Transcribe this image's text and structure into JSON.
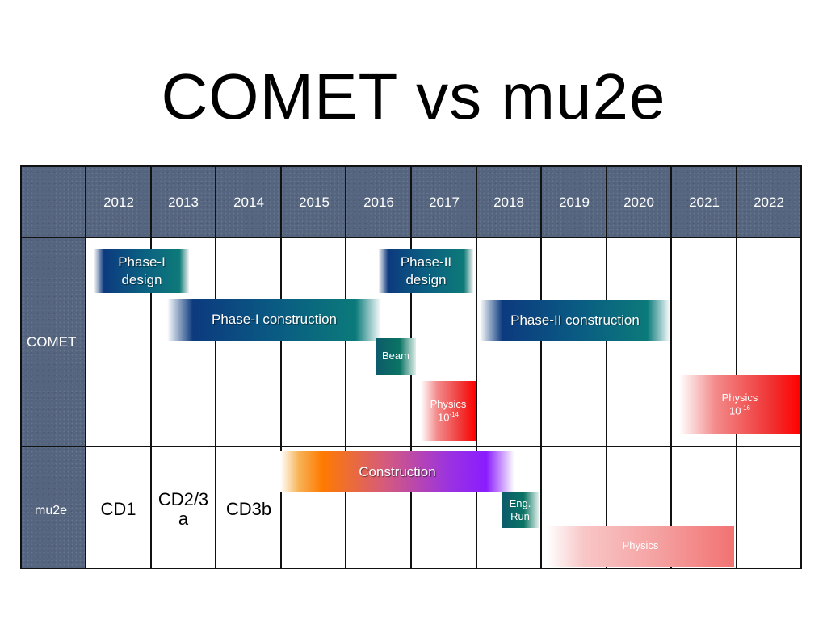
{
  "title": "COMET vs mu2e",
  "years": [
    "2012",
    "2013",
    "2014",
    "2015",
    "2016",
    "2017",
    "2018",
    "2019",
    "2020",
    "2021",
    "2022"
  ],
  "rows": {
    "comet": "COMET",
    "mu2e": "mu2e"
  },
  "comet_bars": {
    "phase1_design": "Phase-I\ndesign",
    "phase2_design": "Phase-II\ndesign",
    "phase1_construction": "Phase-I construction",
    "phase2_construction": "Phase-II construction",
    "beam": "Beam",
    "physics_a_line1": "Physics",
    "physics_a_line2_base": "10",
    "physics_a_line2_exp": "-14",
    "physics_b_line1": "Physics",
    "physics_b_line2_base": "10",
    "physics_b_line2_exp": "-16"
  },
  "mu2e_bars": {
    "construction": "Construction",
    "eng_run": "Eng.\nRun",
    "physics": "Physics",
    "cd1": "CD1",
    "cd23a": "CD2/3\na",
    "cd3b": "CD3b"
  }
}
